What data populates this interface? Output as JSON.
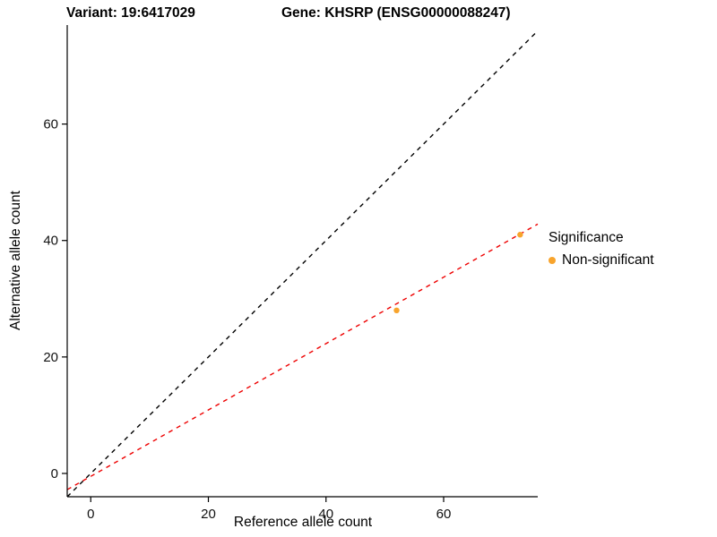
{
  "chart_data": {
    "type": "scatter",
    "title_left": "Variant: 19:6417029",
    "title_right": "Gene: KHSRP (ENSG00000088247)",
    "xlabel": "Reference allele count",
    "ylabel": "Alternative allele count",
    "xlim": [
      -4,
      76
    ],
    "ylim": [
      -4,
      77
    ],
    "xticks": [
      0,
      20,
      40,
      60
    ],
    "yticks": [
      0,
      20,
      40,
      60
    ],
    "grid": false,
    "axis_color": "#000000",
    "text_color": "#111111",
    "point_color": "#F8A42C",
    "points": [
      {
        "x": 52,
        "y": 28
      },
      {
        "x": 73,
        "y": 41
      }
    ],
    "lines": [
      {
        "name": "identity-line",
        "slope": 1.0,
        "intercept": 0.0,
        "color": "#000000",
        "dash": "5,5"
      },
      {
        "name": "fit-line",
        "slope": 0.57,
        "intercept": -0.5,
        "color": "#EE0000",
        "dash": "5,5"
      }
    ],
    "legend": {
      "title": "Significance",
      "position": "right",
      "items": [
        {
          "label": "Non-significant",
          "color": "#F8A42C"
        }
      ]
    }
  }
}
